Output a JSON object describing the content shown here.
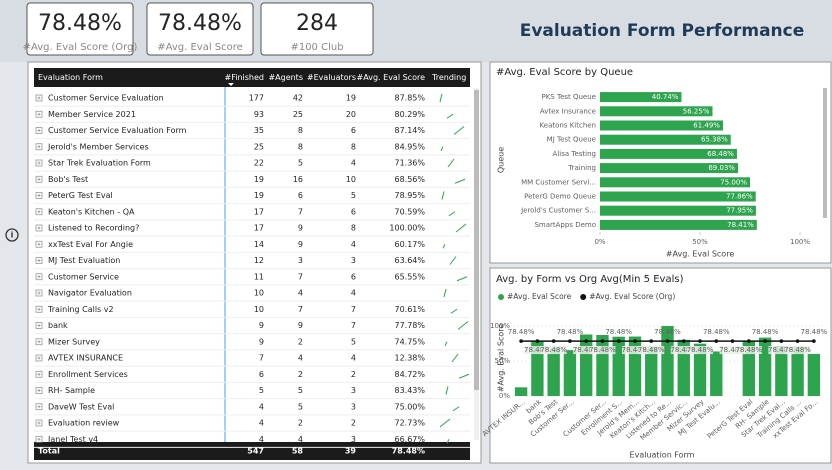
{
  "kpis": [
    {
      "value": "78.48%",
      "label": "#Avg. Eval Score (Org)"
    },
    {
      "value": "78.48%",
      "label": "#Avg. Eval Score"
    },
    {
      "value": "284",
      "label": "#100 Club"
    }
  ],
  "header": {
    "title": "Evaluation Form Performance"
  },
  "table": {
    "columns": [
      "Evaluation Form",
      "#Finished",
      "#Agents",
      "#Evaluators",
      "#Avg. Eval Score",
      "Trending"
    ],
    "rows": [
      [
        "Customer Service Evaluation",
        "177",
        "42",
        "19",
        "87.85%"
      ],
      [
        "Member Service 2021",
        "93",
        "25",
        "20",
        "80.29%"
      ],
      [
        "Customer Service Evaluation Form",
        "35",
        "8",
        "6",
        "87.14%"
      ],
      [
        "Jerold's Member Services",
        "25",
        "8",
        "8",
        "84.95%"
      ],
      [
        "Star Trek Evaluation Form",
        "22",
        "5",
        "4",
        "71.36%"
      ],
      [
        "Bob's Test",
        "19",
        "16",
        "10",
        "68.56%"
      ],
      [
        "PeterG Test Eval",
        "19",
        "6",
        "5",
        "78.95%"
      ],
      [
        "Keaton's Kitchen - QA",
        "17",
        "7",
        "6",
        "70.59%"
      ],
      [
        "Listened to Recording?",
        "17",
        "9",
        "8",
        "100.00%"
      ],
      [
        "xxTest Eval For Angie",
        "14",
        "9",
        "4",
        "60.17%"
      ],
      [
        "MJ Test Evaluation",
        "12",
        "3",
        "3",
        "63.64%"
      ],
      [
        "Customer Service",
        "11",
        "7",
        "6",
        "65.55%"
      ],
      [
        "Navigator Evaluation",
        "10",
        "4",
        "4",
        null
      ],
      [
        "Training Calls v2",
        "10",
        "7",
        "7",
        "70.61%"
      ],
      [
        "bank",
        "9",
        "9",
        "7",
        "77.78%"
      ],
      [
        "Mizer Survey",
        "9",
        "2",
        "5",
        "74.75%"
      ],
      [
        "AVTEX INSURANCE",
        "7",
        "4",
        "4",
        "12.38%"
      ],
      [
        "Enrollment Services",
        "6",
        "2",
        "2",
        "84.72%"
      ],
      [
        "RH- Sample",
        "5",
        "5",
        "3",
        "83.43%"
      ],
      [
        "DaveW Test Eval",
        "4",
        "5",
        "3",
        "75.00%"
      ],
      [
        "Evaluation review",
        "4",
        "2",
        "2",
        "72.73%"
      ],
      [
        "Janel Test v4",
        "4",
        "4",
        "3",
        "66.67%"
      ]
    ],
    "total": [
      "Total",
      "547",
      "58",
      "39",
      "78.48%"
    ]
  },
  "chart_data": [
    {
      "type": "hbar",
      "title": "#Avg. Eval Score by Queue",
      "xlabel": "#Avg. Eval Score",
      "ylabel": "Queue",
      "categories": [
        "PKS Test Queue",
        "Avtex Insurance",
        "Keatons Kitchen",
        "MJ Test Queue",
        "Alisa Testing",
        "Training",
        "MM Customer Servi...",
        "PeterG Demo Queue",
        "Jerold's Customer S...",
        "SmartApps Demo"
      ],
      "values": [
        40.74,
        56.25,
        61.49,
        65.38,
        68.48,
        69.03,
        75.0,
        77.86,
        77.95,
        78.41
      ],
      "value_labels": [
        "40.74%",
        "56.25%",
        "61.49%",
        "65.38%",
        "68.48%",
        "69.03%",
        "75.00%",
        "77.86%",
        "77.95%",
        "78.41%"
      ],
      "color": "#2ea44f",
      "xlim": [
        0,
        105
      ],
      "xticks": [
        {
          "value": 0,
          "label": "0%"
        },
        {
          "value": 50,
          "label": "50%"
        },
        {
          "value": 100,
          "label": "100%"
        }
      ]
    },
    {
      "type": "combo",
      "title": "Avg. by Form vs Org Avg(Min 5 Evals)",
      "xlabel": "Evaluation Form",
      "ylabel": "#Avg. Eval Score",
      "categories": [
        "AVTEX INSUR...",
        "bank",
        "Bob's Test",
        "Customer Ser...",
        null,
        "Customer Ser...",
        "Enrollment S...",
        "Jerold's Mem...",
        "Keaton's Kitch...",
        "Listened to Re...",
        "Member Servic...",
        "Mizer Survey",
        "MJ Test Evalu...",
        null,
        "PeterG Test Eval",
        "RH- Sample",
        "Star Trek Eval...",
        "Training Calls ...",
        "xxTest Eval Fo..."
      ],
      "series": [
        {
          "name": "#Avg. Eval Score",
          "type": "bar",
          "color": "#2ea44f",
          "values": [
            12.38,
            77.78,
            68.56,
            65.55,
            87.85,
            87.14,
            84.72,
            84.95,
            70.59,
            100,
            80.29,
            74.75,
            63.64,
            null,
            78.95,
            83.43,
            71.36,
            70.61,
            60.17
          ]
        },
        {
          "name": "#Avg. Eval Score (Org)",
          "type": "line",
          "color": "#111111",
          "values": [
            78.48,
            78.48,
            78.48,
            78.48,
            78.48,
            78.48,
            78.48,
            78.48,
            78.48,
            78.48,
            78.48,
            78.48,
            78.48,
            78.48,
            78.48,
            78.48,
            78.48,
            78.48,
            78.48
          ],
          "value_labels": [
            "78.48%",
            "78.48%",
            "78.48%",
            "78.48%",
            "78.48%",
            "78.48%",
            "78.48%",
            "78.48%",
            "78.48%",
            "78.48%",
            "78.48%",
            "78.48%",
            "78.48%",
            "78.48%",
            "78.48%",
            "78.48%",
            "78.48%",
            "78.48%",
            "78.48%"
          ]
        }
      ],
      "ylim": [
        0,
        110
      ],
      "yticks": [
        {
          "value": 0,
          "label": "0%"
        },
        {
          "value": 50,
          "label": "50%"
        },
        {
          "value": 100,
          "label": "100%"
        }
      ],
      "legend": "top-left"
    }
  ]
}
